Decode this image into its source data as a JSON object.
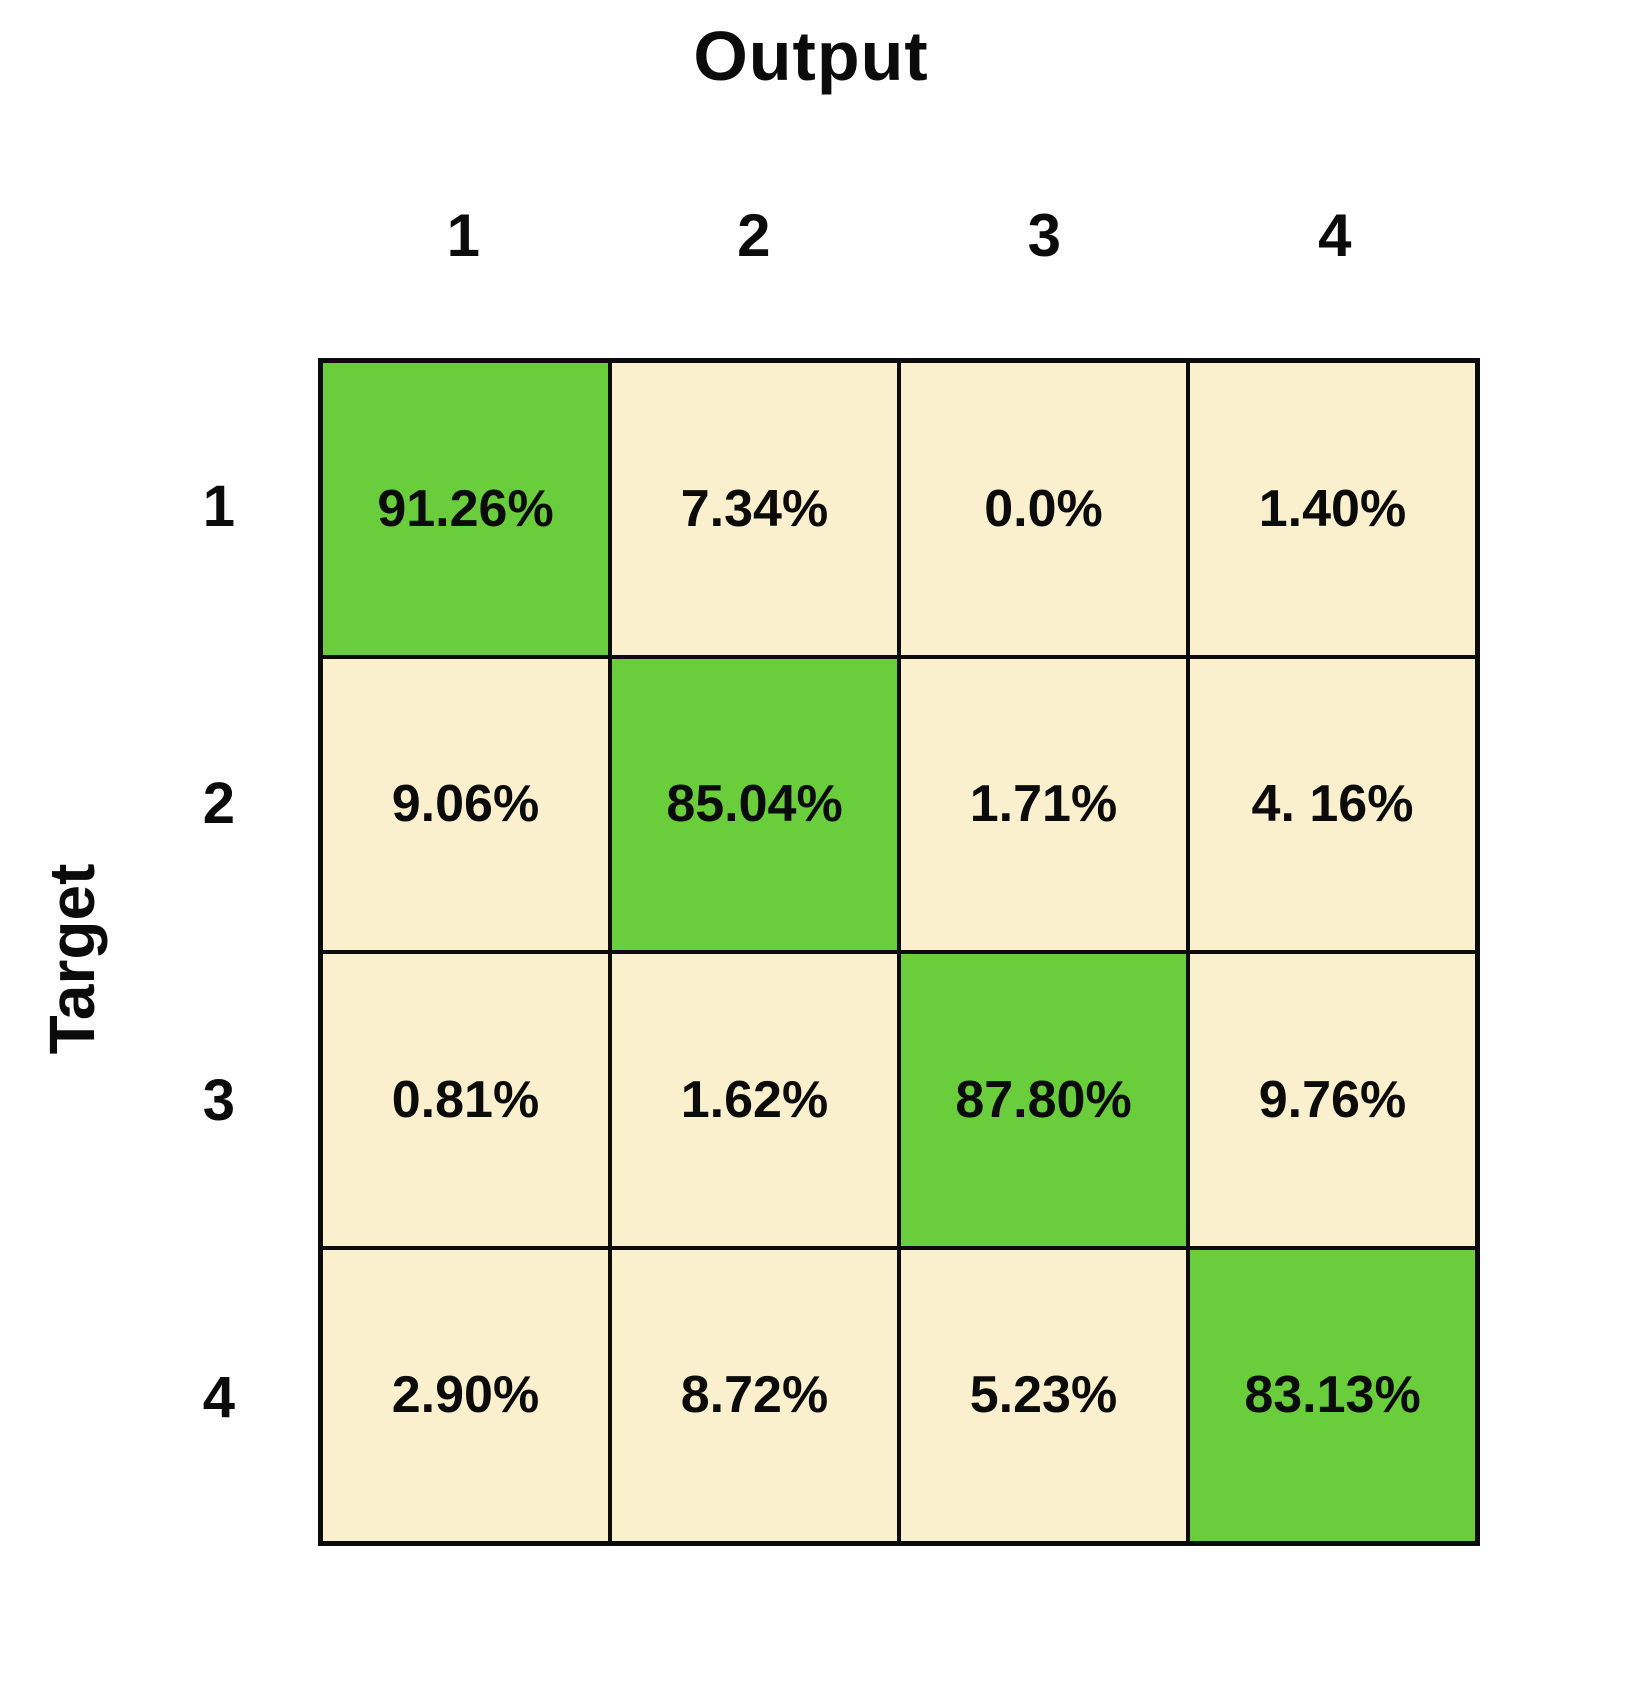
{
  "chart_data": {
    "type": "heatmap",
    "title": "",
    "xlabel": "Output",
    "ylabel": "Target",
    "columns": [
      "1",
      "2",
      "3",
      "4"
    ],
    "rows": [
      "1",
      "2",
      "3",
      "4"
    ],
    "cells": [
      [
        "91.26%",
        "7.34%",
        "0.0%",
        "1.40%"
      ],
      [
        "9.06%",
        "85.04%",
        "1.71%",
        "4. 16%"
      ],
      [
        "0.81%",
        "1.62%",
        "87.80%",
        "9.76%"
      ],
      [
        "2.90%",
        "8.72%",
        "5.23%",
        "83.13%"
      ]
    ],
    "diagonal_values": [
      91.26,
      85.04,
      87.8,
      83.13
    ],
    "diagonal_color": "#69cd3c",
    "offdiagonal_color": "#faf0cd",
    "border_color": "#0b0b0b",
    "legend_position": "none",
    "grid": true
  }
}
